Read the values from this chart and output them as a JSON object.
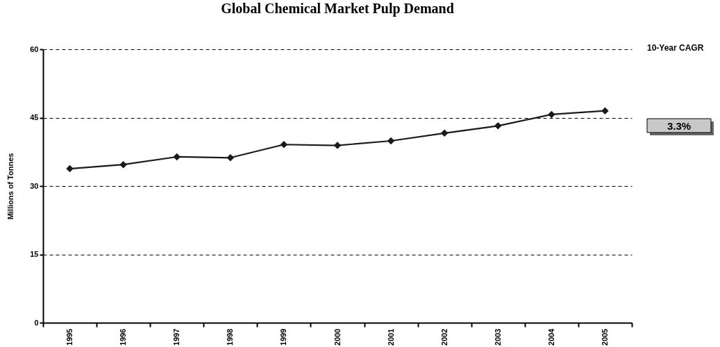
{
  "chart_data": {
    "type": "line",
    "title": "Global Chemical Market Pulp Demand",
    "ylabel": "Millions of Tonnes",
    "categories": [
      "1995",
      "1996",
      "1997",
      "1998",
      "1999",
      "2000",
      "2001",
      "2002",
      "2003",
      "2004",
      "2005"
    ],
    "series": [
      {
        "color": "#1a1a1a",
        "values": [
          33.8,
          34.7,
          36.4,
          36.2,
          39.1,
          38.9,
          39.9,
          41.6,
          43.2,
          45.7,
          46.5
        ]
      }
    ],
    "ylim": [
      0,
      60
    ],
    "yticks": [
      0,
      15,
      30,
      45,
      60
    ],
    "grid": "y",
    "marker": "diamond",
    "line_style": "solid",
    "annotations": [
      "10-Year CAGR",
      "3.3%"
    ]
  }
}
